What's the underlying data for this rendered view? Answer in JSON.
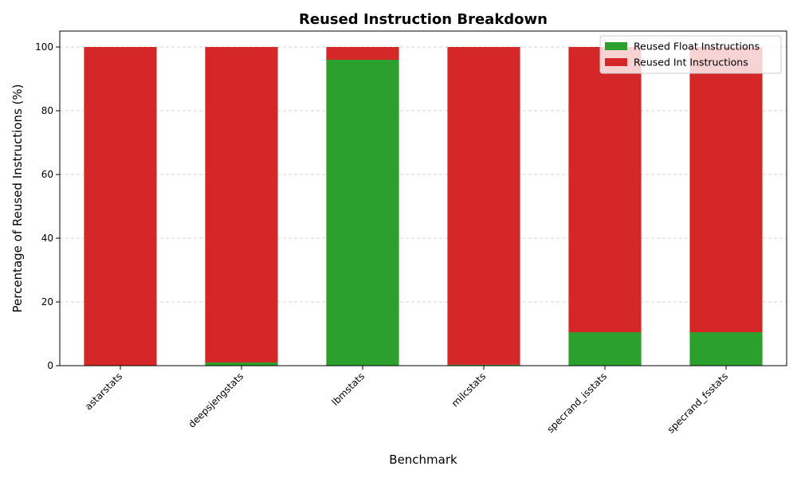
{
  "chart_data": {
    "type": "bar",
    "stacked": true,
    "title": "Reused Instruction Breakdown",
    "xlabel": "Benchmark",
    "ylabel": "Percentage of Reused Instructions (%)",
    "ylim": [
      0,
      105
    ],
    "yticks": [
      0,
      20,
      40,
      60,
      80,
      100
    ],
    "grid": "y-dashed",
    "legend_position": "top-right",
    "categories": [
      "astarstats",
      "deepsjengstats",
      "lbmstats",
      "milcstats",
      "specrand_isstats",
      "specrand_fsstats"
    ],
    "series": [
      {
        "name": "Reused Float Instructions",
        "color": "#2ca02c",
        "values": [
          0.1,
          1.0,
          96.0,
          0.3,
          10.5,
          10.5
        ]
      },
      {
        "name": "Reused Int Instructions",
        "color": "#d62728",
        "values": [
          99.9,
          99.0,
          4.0,
          99.7,
          89.5,
          89.5
        ]
      }
    ]
  }
}
